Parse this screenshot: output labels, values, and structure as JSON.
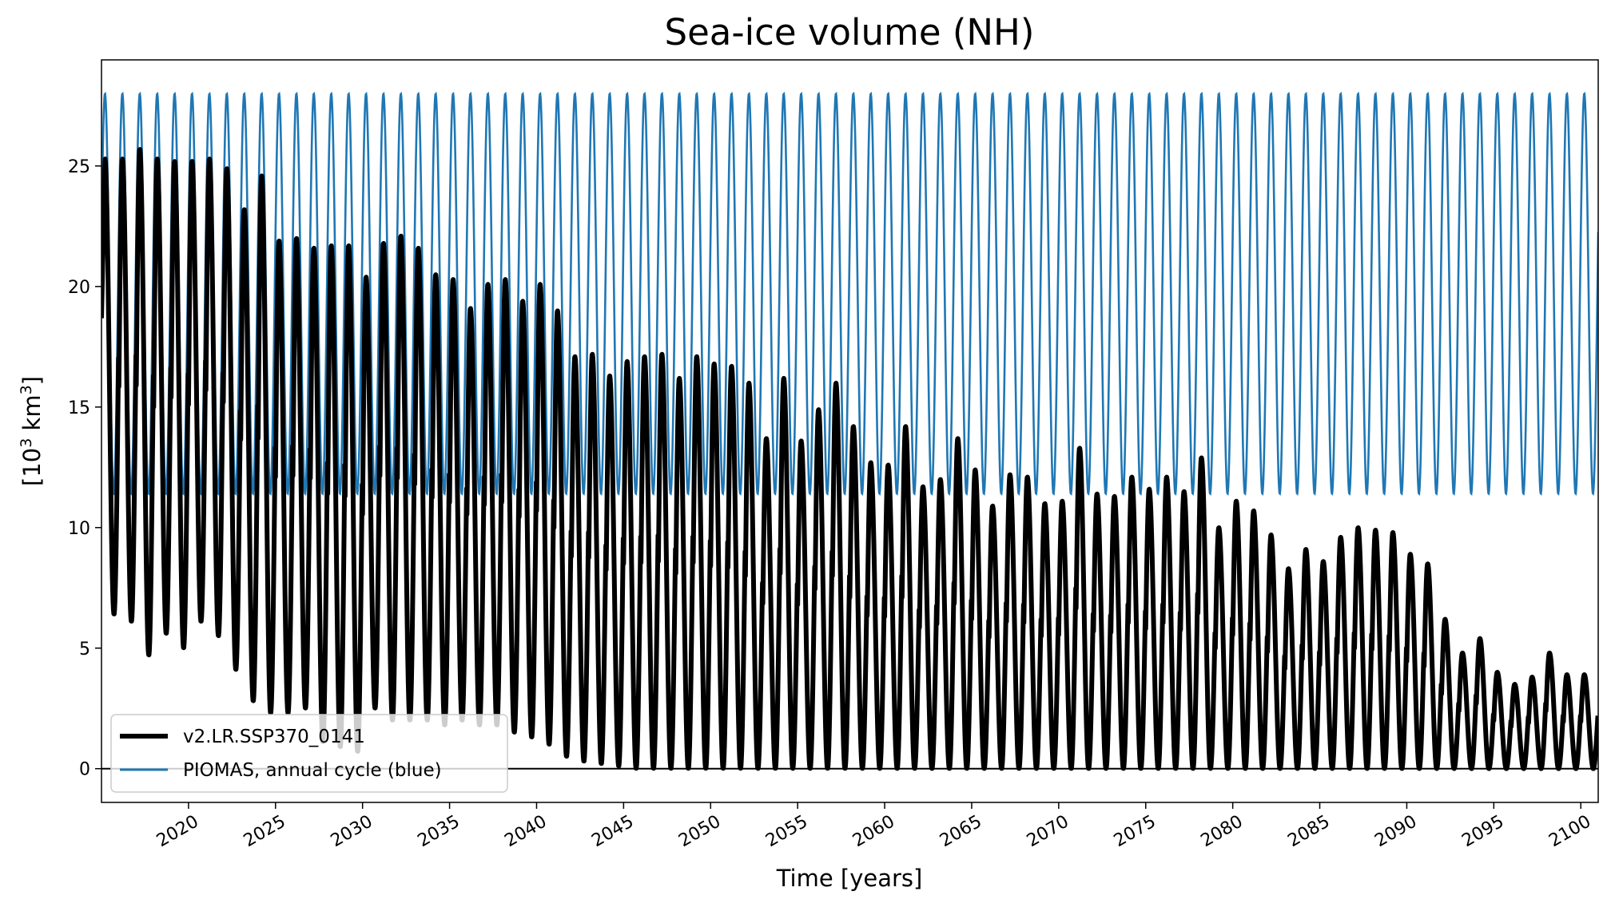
{
  "chart_data": {
    "type": "line",
    "title": "Sea-ice volume (NH)",
    "xlabel": "Time [years]",
    "ylabel_base": "[10",
    "ylabel_sup": "3",
    "ylabel_unit": " km",
    "ylabel_sup2": "3",
    "ylabel_end": "]",
    "xlim": [
      2015,
      2101
    ],
    "ylim": [
      -1.4,
      29.4
    ],
    "xticks": [
      2020,
      2025,
      2030,
      2035,
      2040,
      2045,
      2050,
      2055,
      2060,
      2065,
      2070,
      2075,
      2080,
      2085,
      2090,
      2095,
      2100
    ],
    "xtick_labels": [
      "2020",
      "2025",
      "2030",
      "2035",
      "2040",
      "2045",
      "2050",
      "2055",
      "2060",
      "2065",
      "2070",
      "2075",
      "2080",
      "2085",
      "2090",
      "2095",
      "2100"
    ],
    "yticks": [
      0,
      5,
      10,
      15,
      20,
      25
    ],
    "ytick_labels": [
      "0",
      "5",
      "10",
      "15",
      "20",
      "25"
    ],
    "zero_line": true,
    "grid": false,
    "legend_position": "lower-left",
    "series": [
      {
        "name": "v2.LR.SSP370_0141",
        "color": "#000000",
        "kind": "model-annual-cycle",
        "years": [
          2015,
          2016,
          2017,
          2018,
          2019,
          2020,
          2021,
          2022,
          2023,
          2024,
          2025,
          2026,
          2027,
          2028,
          2029,
          2030,
          2031,
          2032,
          2033,
          2034,
          2035,
          2036,
          2037,
          2038,
          2039,
          2040,
          2041,
          2042,
          2043,
          2044,
          2045,
          2046,
          2047,
          2048,
          2049,
          2050,
          2051,
          2052,
          2053,
          2054,
          2055,
          2056,
          2057,
          2058,
          2059,
          2060,
          2061,
          2062,
          2063,
          2064,
          2065,
          2066,
          2067,
          2068,
          2069,
          2070,
          2071,
          2072,
          2073,
          2074,
          2075,
          2076,
          2077,
          2078,
          2079,
          2080,
          2081,
          2082,
          2083,
          2084,
          2085,
          2086,
          2087,
          2088,
          2089,
          2090,
          2091,
          2092,
          2093,
          2094,
          2095,
          2096,
          2097,
          2098,
          2099,
          2100
        ],
        "annual_max": [
          25.3,
          25.3,
          25.7,
          25.3,
          25.2,
          25.2,
          25.3,
          24.9,
          23.2,
          24.6,
          21.9,
          22.0,
          21.6,
          21.7,
          21.7,
          20.4,
          21.8,
          22.1,
          21.6,
          20.5,
          20.3,
          19.1,
          20.1,
          20.3,
          19.4,
          20.1,
          19.0,
          17.1,
          17.2,
          16.3,
          16.9,
          17.1,
          17.2,
          16.2,
          17.1,
          16.8,
          16.7,
          16.0,
          13.7,
          16.2,
          13.6,
          14.9,
          16.0,
          14.2,
          12.7,
          12.6,
          14.2,
          11.7,
          12.0,
          13.7,
          12.4,
          10.9,
          12.2,
          12.1,
          11.0,
          11.1,
          13.3,
          11.4,
          11.3,
          12.1,
          11.6,
          12.1,
          11.5,
          12.9,
          10.0,
          11.1,
          10.7,
          9.7,
          8.3,
          9.1,
          8.6,
          9.6,
          10.0,
          9.9,
          9.8,
          8.9,
          8.5,
          6.2,
          4.8,
          5.4,
          4.0,
          3.5,
          3.8,
          4.8,
          3.9,
          3.9
        ],
        "annual_min": [
          6.4,
          6.1,
          4.7,
          5.6,
          5.0,
          6.1,
          5.5,
          4.1,
          2.8,
          2.3,
          2.3,
          2.5,
          1.1,
          0.9,
          0.7,
          2.5,
          2.0,
          2.0,
          2.0,
          1.8,
          2.0,
          1.8,
          1.8,
          1.5,
          1.3,
          1.0,
          0.5,
          0.3,
          0.2,
          0.1,
          0.0,
          0.0,
          0.0,
          0.0,
          0.0,
          0.0,
          0.0,
          0.0,
          0.0,
          0.0,
          0.0,
          0.0,
          0.0,
          0.0,
          0.0,
          0.0,
          0.0,
          0.0,
          0.0,
          0.0,
          0.0,
          0.0,
          0.0,
          0.0,
          0.0,
          0.0,
          0.0,
          0.0,
          0.0,
          0.0,
          0.0,
          0.0,
          0.0,
          0.0,
          0.0,
          0.0,
          0.0,
          0.0,
          0.0,
          0.0,
          0.0,
          0.0,
          0.0,
          0.0,
          0.0,
          0.0,
          0.0,
          0.0,
          0.0,
          0.0,
          0.0,
          0.0,
          0.0,
          0.0,
          0.0,
          0.0
        ]
      },
      {
        "name": "PIOMAS, annual cycle (blue)",
        "color": "#1f77b4",
        "kind": "repeating-annual-cycle",
        "max": 28.0,
        "min": 11.4
      }
    ]
  }
}
